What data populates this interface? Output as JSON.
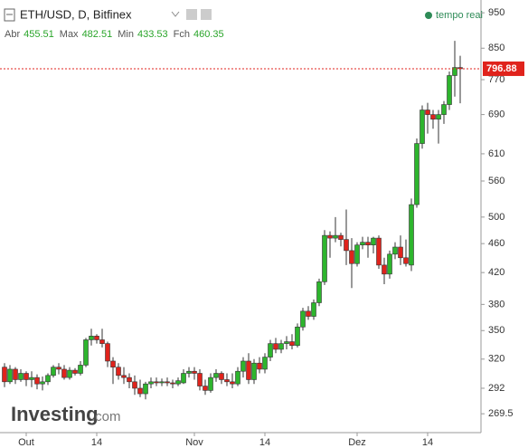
{
  "chart_data": {
    "type": "candlestick",
    "title": "ETH/USD, D, Bitfinex",
    "ohlc_legend": [
      {
        "label": "Abr",
        "value": 455.51
      },
      {
        "label": "Max",
        "value": 482.51
      },
      {
        "label": "Min",
        "value": 433.53
      },
      {
        "label": "Fch",
        "value": 460.35
      }
    ],
    "status": "tempo real",
    "watermark": [
      "Investing",
      ".com"
    ],
    "up_color": "#2db52d",
    "down_color": "#e0231c",
    "log_scale": true,
    "grid": false,
    "ylim": [
      254,
      989
    ],
    "yticks": [
      269.5,
      292,
      320,
      350,
      380,
      420,
      460,
      500,
      560,
      610,
      690,
      770,
      850,
      950
    ],
    "last_price": 796.88,
    "categories": [
      null,
      null,
      null,
      null,
      "Out",
      null,
      null,
      null,
      null,
      null,
      null,
      null,
      null,
      null,
      null,
      null,
      null,
      "14",
      null,
      null,
      null,
      null,
      null,
      null,
      null,
      null,
      null,
      null,
      null,
      null,
      null,
      null,
      null,
      null,
      null,
      "Nov",
      null,
      null,
      null,
      null,
      null,
      null,
      null,
      null,
      null,
      null,
      null,
      null,
      "14",
      null,
      null,
      null,
      null,
      null,
      null,
      null,
      null,
      null,
      null,
      null,
      null,
      null,
      null,
      null,
      null,
      "Dez",
      null,
      null,
      null,
      null,
      null,
      null,
      null,
      null,
      null,
      null,
      null,
      null,
      "14",
      null,
      null,
      null,
      null,
      null,
      null
    ],
    "open": [
      312,
      298,
      310,
      300,
      306,
      300,
      302,
      296,
      298,
      304,
      312,
      310,
      302,
      309,
      306,
      314,
      340,
      344,
      340,
      336,
      318,
      312,
      304,
      302,
      298,
      292,
      287,
      296,
      298,
      297,
      298,
      297,
      296,
      297,
      306,
      308,
      306,
      294,
      290,
      302,
      306,
      300,
      298,
      296,
      308,
      318,
      300,
      316,
      310,
      322,
      336,
      330,
      336,
      338,
      334,
      354,
      372,
      366,
      382,
      408,
      472,
      468,
      472,
      466,
      450,
      432,
      458,
      462,
      458,
      468,
      430,
      418,
      445,
      455,
      440,
      430,
      520,
      630,
      700,
      690,
      680,
      690,
      712,
      780,
      800
    ],
    "high": [
      316,
      314,
      312,
      310,
      308,
      308,
      305,
      303,
      306,
      314,
      316,
      314,
      312,
      311,
      318,
      342,
      352,
      346,
      352,
      338,
      322,
      316,
      312,
      306,
      304,
      300,
      298,
      302,
      302,
      301,
      302,
      300,
      302,
      310,
      312,
      312,
      310,
      300,
      306,
      310,
      308,
      306,
      306,
      312,
      322,
      326,
      320,
      322,
      326,
      340,
      342,
      340,
      344,
      346,
      358,
      376,
      378,
      386,
      412,
      480,
      478,
      500,
      476,
      512,
      468,
      462,
      470,
      470,
      470,
      472,
      440,
      450,
      462,
      472,
      466,
      530,
      640,
      710,
      716,
      700,
      700,
      720,
      790,
      870,
      830
    ],
    "low": [
      293,
      296,
      296,
      298,
      294,
      293,
      291,
      290,
      295,
      302,
      305,
      300,
      300,
      304,
      304,
      312,
      334,
      336,
      332,
      312,
      296,
      300,
      296,
      292,
      286,
      284,
      282,
      292,
      294,
      294,
      294,
      292,
      294,
      296,
      302,
      300,
      290,
      286,
      288,
      298,
      296,
      294,
      292,
      294,
      302,
      296,
      296,
      306,
      306,
      318,
      326,
      326,
      330,
      330,
      332,
      350,
      362,
      362,
      378,
      404,
      440,
      462,
      456,
      430,
      400,
      428,
      452,
      440,
      446,
      425,
      405,
      412,
      438,
      430,
      428,
      422,
      515,
      620,
      650,
      660,
      630,
      670,
      700,
      730,
      715
    ],
    "close": [
      298,
      310,
      300,
      306,
      300,
      302,
      296,
      298,
      304,
      312,
      310,
      302,
      309,
      306,
      314,
      340,
      344,
      340,
      336,
      318,
      312,
      304,
      302,
      298,
      292,
      287,
      296,
      298,
      297,
      298,
      297,
      296,
      299,
      306,
      308,
      306,
      294,
      290,
      302,
      306,
      300,
      298,
      296,
      308,
      318,
      300,
      316,
      310,
      322,
      336,
      330,
      336,
      338,
      334,
      354,
      372,
      366,
      382,
      408,
      472,
      468,
      472,
      466,
      450,
      432,
      458,
      462,
      458,
      468,
      430,
      418,
      445,
      455,
      440,
      432,
      520,
      630,
      700,
      690,
      680,
      690,
      712,
      780,
      800,
      796.88
    ]
  }
}
